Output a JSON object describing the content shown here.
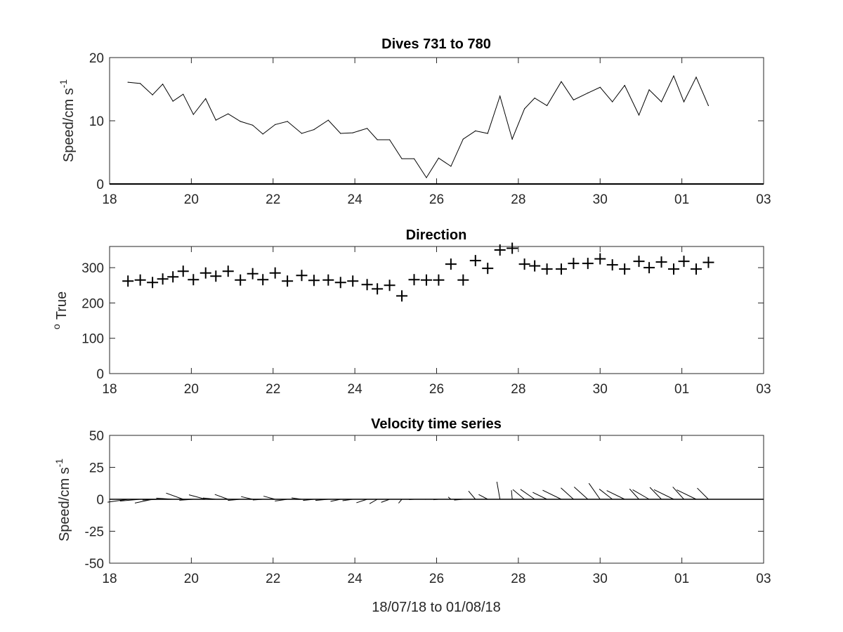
{
  "chart_data": [
    {
      "type": "line",
      "title": "Dives 731 to 780",
      "xlabel": "",
      "ylabel": "Speed/cm s",
      "ylabel_superscript": "-1",
      "xlim_days": [
        18,
        34
      ],
      "x_tick_labels": [
        "18",
        "20",
        "22",
        "24",
        "26",
        "28",
        "30",
        "01",
        "03"
      ],
      "ylim": [
        0,
        20
      ],
      "y_ticks": [
        0,
        10,
        20
      ],
      "x_days": [
        18.45,
        18.75,
        19.05,
        19.3,
        19.55,
        19.8,
        20.05,
        20.35,
        20.6,
        20.9,
        21.2,
        21.5,
        21.75,
        22.05,
        22.35,
        22.7,
        23.0,
        23.35,
        23.65,
        23.95,
        24.3,
        24.55,
        24.85,
        25.15,
        25.45,
        25.75,
        26.05,
        26.35,
        26.65,
        26.95,
        27.25,
        27.55,
        27.85,
        28.15,
        28.4,
        28.7,
        29.05,
        29.35,
        29.7,
        30.0,
        30.3,
        30.6,
        30.95,
        31.2,
        31.5,
        31.8,
        32.05,
        32.35,
        32.65
      ],
      "values": [
        16.1,
        15.9,
        14.1,
        15.8,
        13.1,
        14.2,
        11.0,
        13.5,
        10.1,
        11.1,
        9.9,
        9.3,
        7.9,
        9.4,
        9.9,
        8.0,
        8.6,
        10.1,
        8.0,
        8.1,
        8.8,
        7.0,
        7.0,
        4.0,
        4.0,
        1.0,
        4.1,
        2.8,
        7.1,
        8.4,
        8.0,
        13.9,
        7.1,
        11.9,
        13.6,
        12.4,
        16.2,
        13.3,
        14.4,
        15.3,
        13.0,
        15.6,
        10.9,
        14.9,
        13.0,
        17.1,
        13.0,
        16.9,
        12.4
      ]
    },
    {
      "type": "scatter",
      "title": "Direction",
      "xlabel": "",
      "ylabel": "True",
      "ylabel_prefix_superscript": "o",
      "marker": "+",
      "xlim_days": [
        18,
        34
      ],
      "x_tick_labels": [
        "18",
        "20",
        "22",
        "24",
        "26",
        "28",
        "30",
        "01",
        "03"
      ],
      "ylim": [
        0,
        360
      ],
      "y_ticks": [
        0,
        100,
        200,
        300
      ],
      "x_days": [
        18.45,
        18.75,
        19.05,
        19.3,
        19.55,
        19.8,
        20.05,
        20.35,
        20.6,
        20.9,
        21.2,
        21.5,
        21.75,
        22.05,
        22.35,
        22.7,
        23.0,
        23.35,
        23.65,
        23.95,
        24.3,
        24.55,
        24.85,
        25.15,
        25.45,
        25.75,
        26.05,
        26.35,
        26.65,
        26.95,
        27.25,
        27.55,
        27.85,
        28.15,
        28.4,
        28.7,
        29.05,
        29.35,
        29.7,
        30.0,
        30.3,
        30.6,
        30.95,
        31.2,
        31.5,
        31.8,
        32.05,
        32.35,
        32.65
      ],
      "values": [
        262,
        265,
        258,
        268,
        274,
        290,
        266,
        285,
        276,
        290,
        265,
        283,
        266,
        285,
        262,
        278,
        264,
        265,
        258,
        262,
        252,
        240,
        250,
        220,
        266,
        265,
        265,
        310,
        265,
        320,
        298,
        350,
        355,
        310,
        305,
        296,
        296,
        312,
        312,
        325,
        308,
        296,
        318,
        300,
        316,
        296,
        318,
        296,
        315
      ]
    },
    {
      "type": "quiver",
      "title": "Velocity time series",
      "xlabel": "18/07/18 to 01/08/18",
      "ylabel": "Speed/cm s",
      "ylabel_superscript": "-1",
      "xlim_days": [
        18,
        34
      ],
      "x_tick_labels": [
        "18",
        "20",
        "22",
        "24",
        "26",
        "28",
        "30",
        "01",
        "03"
      ],
      "ylim": [
        -50,
        50
      ],
      "y_ticks": [
        -50,
        -25,
        0,
        25,
        50
      ],
      "vectors_from": "speed and direction series above, drawn as sticks from the zero line"
    }
  ]
}
